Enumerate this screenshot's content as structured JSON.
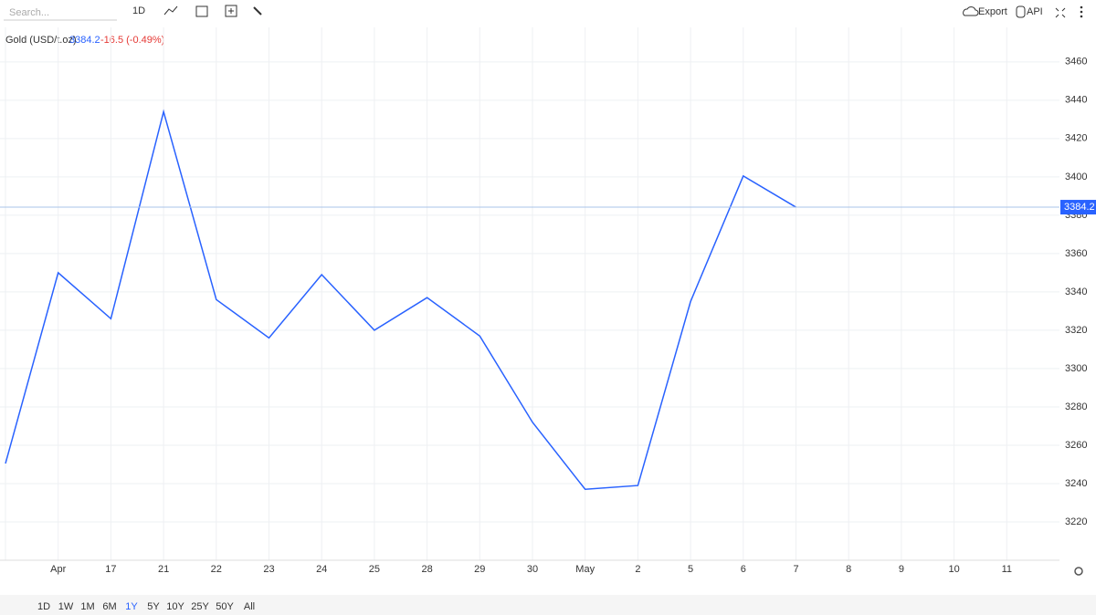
{
  "toolbar": {
    "search_placeholder": "Search...",
    "interval": "1D",
    "export": "Export",
    "api": "API"
  },
  "chart_data": {
    "type": "line",
    "series": [
      {
        "name": "Gold (USD/t.oz)",
        "color": "#2962ff",
        "values": [
          3250.5,
          3350,
          3326,
          3434,
          3336,
          3316,
          3349,
          3320,
          3337,
          3317,
          3272,
          3237,
          3239,
          3335,
          3400.5,
          3384.2,
          null,
          null,
          null,
          null
        ]
      }
    ],
    "categories": [
      null,
      "Apr",
      "17",
      "21",
      "22",
      "23",
      "24",
      "25",
      "28",
      "29",
      "30",
      "May",
      "2",
      "5",
      "6",
      "7",
      "8",
      "9",
      "10",
      "11"
    ],
    "last_price": 3384.2,
    "change": "-16.5 (-0.49%)",
    "ylim": [
      3200,
      3478
    ],
    "yticks": [
      3220,
      3240,
      3260,
      3280,
      3300,
      3320,
      3340,
      3360,
      3380,
      3400,
      3420,
      3440,
      3460
    ],
    "grid": true
  },
  "ranges": [
    "1D",
    "1W",
    "1M",
    "6M",
    "1Y",
    "5Y",
    "10Y",
    "25Y",
    "50Y",
    "All"
  ],
  "active_range": "1Y"
}
